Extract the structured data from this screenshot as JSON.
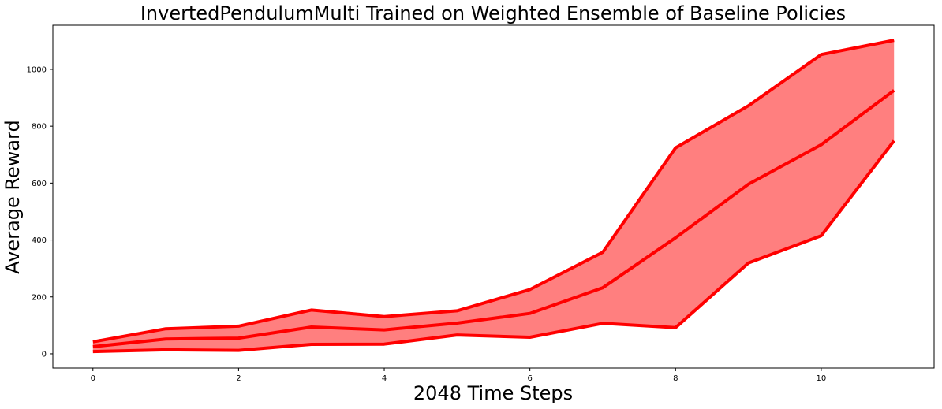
{
  "chart_data": {
    "type": "line",
    "title": "InvertedPendulumMulti Trained on Weighted Ensemble of Baseline Policies",
    "xlabel": "2048 Time Steps",
    "ylabel": "Average Reward",
    "x": [
      0,
      1,
      2,
      3,
      4,
      5,
      6,
      7,
      8,
      9,
      10,
      11
    ],
    "series": [
      {
        "values": [
          42,
          88,
          97,
          154,
          131,
          151,
          226,
          357,
          724,
          872,
          1052,
          1102
        ]
      },
      {
        "values": [
          25,
          52,
          55,
          94,
          84,
          108,
          142,
          232,
          408,
          596,
          735,
          926
        ]
      },
      {
        "values": [
          8,
          14,
          12,
          33,
          34,
          66,
          58,
          107,
          92,
          319,
          415,
          749
        ]
      }
    ],
    "xlim": [
      -0.55,
      11.55
    ],
    "ylim": [
      -50,
      1155
    ],
    "xticks": [
      0,
      2,
      4,
      6,
      8,
      10
    ],
    "yticks": [
      0,
      200,
      400,
      600,
      800,
      1000
    ],
    "band_color": "#ff7f7f",
    "line_color": "#ff0000",
    "grid": false
  }
}
